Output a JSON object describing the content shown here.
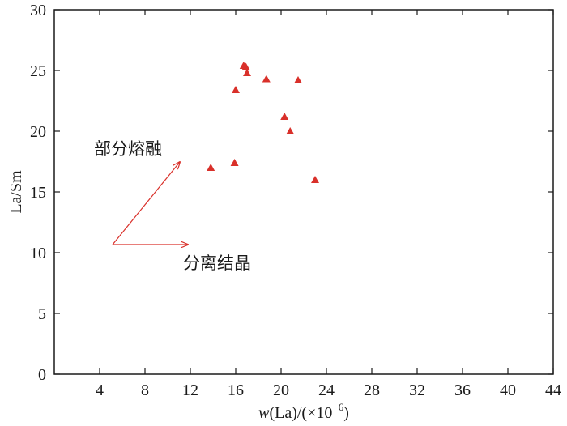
{
  "chart_data": {
    "type": "scatter",
    "xlabel_prefix": "w",
    "xlabel_rest": "(La)/(×10",
    "xlabel_sup": "−6",
    "xlabel_close": ")",
    "ylabel": "La/Sm",
    "xlim": [
      0,
      44
    ],
    "ylim": [
      0,
      30
    ],
    "xticks": [
      4,
      8,
      12,
      16,
      20,
      24,
      28,
      32,
      36,
      40,
      44
    ],
    "yticks": [
      0,
      5,
      10,
      15,
      20,
      25,
      30
    ],
    "grid": false,
    "marker": "triangle",
    "marker_color": "#d9302a",
    "arrow_color": "#d9302a",
    "points": [
      {
        "x": 13.8,
        "y": 17.0
      },
      {
        "x": 15.9,
        "y": 17.4
      },
      {
        "x": 16.0,
        "y": 23.4
      },
      {
        "x": 16.7,
        "y": 25.4
      },
      {
        "x": 16.9,
        "y": 25.3
      },
      {
        "x": 17.0,
        "y": 24.8
      },
      {
        "x": 18.7,
        "y": 24.3
      },
      {
        "x": 20.3,
        "y": 21.2
      },
      {
        "x": 20.8,
        "y": 20.0
      },
      {
        "x": 21.5,
        "y": 24.2
      },
      {
        "x": 23.0,
        "y": 16.0
      }
    ],
    "annotations": {
      "partial_melting": "部分熔融",
      "fractional_crystallization": "分离结晶"
    }
  }
}
